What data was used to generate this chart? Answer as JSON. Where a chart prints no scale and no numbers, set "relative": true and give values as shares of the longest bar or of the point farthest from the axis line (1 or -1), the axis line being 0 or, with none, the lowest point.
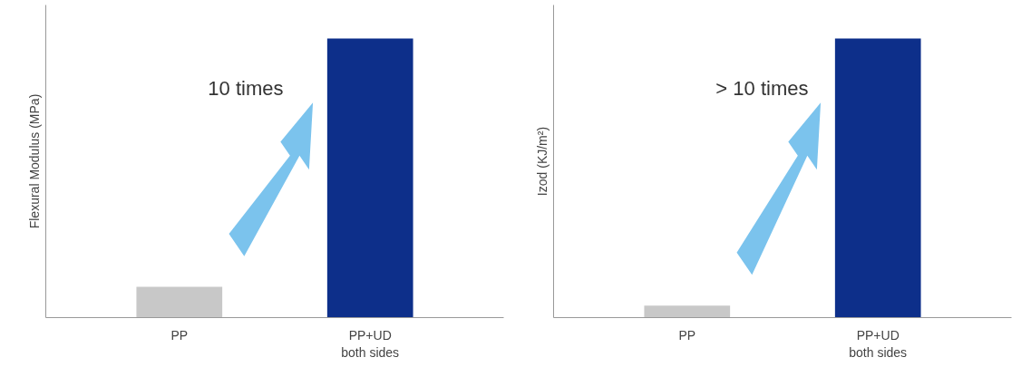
{
  "chart_data": [
    {
      "type": "bar",
      "relative": true,
      "ylabel": "Flexural Modulus (MPa)",
      "categories": [
        "PP",
        "PP+UD\nboth sides"
      ],
      "values": [
        0.11,
        1
      ],
      "colors": [
        "#c8c8c8",
        "#0d2f8a"
      ],
      "annotations": [
        "10 times"
      ]
    },
    {
      "type": "bar",
      "relative": true,
      "ylabel": "Izod (KJ/m²)",
      "categories": [
        "PP",
        "PP+UD\nboth sides"
      ],
      "values": [
        0.043,
        1
      ],
      "colors": [
        "#c8c8c8",
        "#0d2f8a"
      ],
      "annotations": [
        "> 10 times"
      ]
    }
  ]
}
